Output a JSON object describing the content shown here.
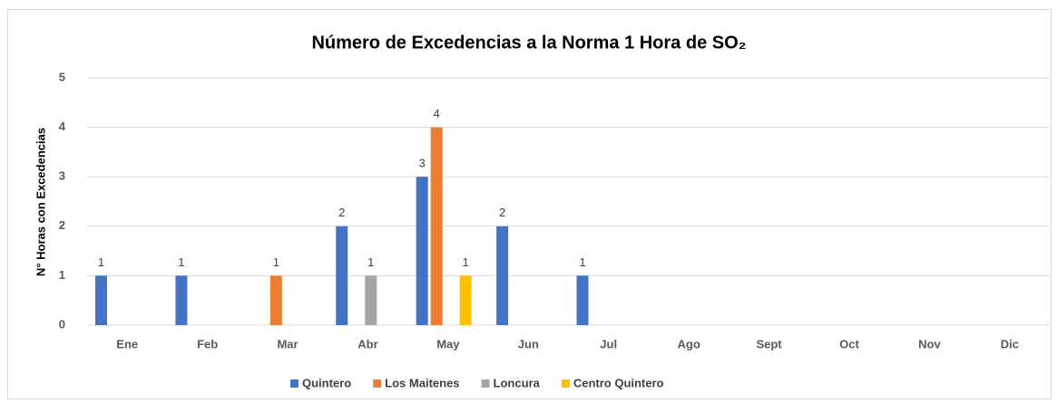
{
  "chart_data": {
    "type": "bar",
    "title": "Número de Excedencias a la Norma 1 Hora de SO₂",
    "y_label": "N° Horas con Excedencias",
    "categories": [
      "Ene",
      "Feb",
      "Mar",
      "Abr",
      "May",
      "Jun",
      "Jul",
      "Ago",
      "Sept",
      "Oct",
      "Nov",
      "Dic"
    ],
    "series": [
      {
        "name": "Quintero",
        "color": "#4472c4",
        "values": [
          1,
          1,
          null,
          2,
          3,
          2,
          1,
          null,
          null,
          null,
          null,
          null
        ]
      },
      {
        "name": "Los Maitenes",
        "color": "#ed7d31",
        "values": [
          null,
          null,
          1,
          null,
          4,
          null,
          null,
          null,
          null,
          null,
          null,
          null
        ]
      },
      {
        "name": "Loncura",
        "color": "#a5a5a5",
        "values": [
          null,
          null,
          null,
          1,
          null,
          null,
          null,
          null,
          null,
          null,
          null,
          null
        ]
      },
      {
        "name": "Centro Quintero",
        "color": "#ffc000",
        "values": [
          null,
          null,
          null,
          null,
          1,
          null,
          null,
          null,
          null,
          null,
          null,
          null
        ]
      }
    ],
    "ylim": [
      0,
      5
    ],
    "yticks": [
      0,
      1,
      2,
      3,
      4,
      5
    ],
    "grid": true,
    "legend": "bottom"
  }
}
